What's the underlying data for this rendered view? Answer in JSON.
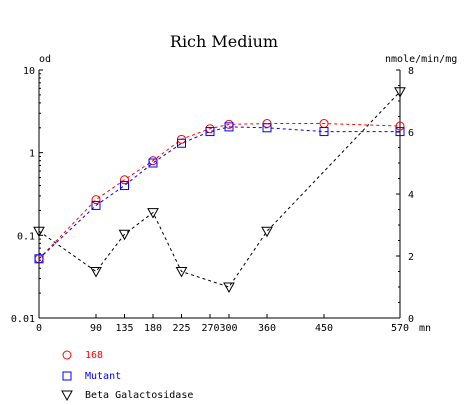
{
  "chart_data": {
    "type": "line",
    "title": "Rich Medium",
    "y_left_label": "od",
    "y_right_label": "nmole/min/mg",
    "x_unit_label": "mn",
    "x_ticks": [
      0,
      90,
      135,
      180,
      225,
      270,
      300,
      360,
      450,
      570
    ],
    "x_tick_labels": [
      "0",
      "90",
      "135",
      "180",
      "225",
      "270300",
      "360",
      "450",
      "570"
    ],
    "x_tick_label_positions": [
      0,
      90,
      135,
      180,
      225,
      285,
      360,
      450,
      570
    ],
    "xlim": [
      0,
      570
    ],
    "y_left_scale": "log",
    "y_left_lim": [
      0.01,
      10
    ],
    "y_left_ticks": [
      0.01,
      0.1,
      1,
      10
    ],
    "y_left_tick_labels": [
      "0.01",
      "0.1",
      "1",
      "10"
    ],
    "y_right_lim": [
      0,
      8
    ],
    "y_right_ticks": [
      0,
      2,
      4,
      6,
      8
    ],
    "y_right_tick_labels": [
      "0",
      "2",
      "4",
      "6",
      "8"
    ],
    "grid": false,
    "legend_position": "bottom-left",
    "series": [
      {
        "name": "168",
        "axis": "left",
        "color": "#ff0000",
        "marker": "circle",
        "x": [
          0,
          90,
          135,
          180,
          225,
          270,
          300,
          360,
          450,
          570
        ],
        "y": [
          0.052,
          0.27,
          0.47,
          0.8,
          1.45,
          1.95,
          2.2,
          2.25,
          2.25,
          2.1
        ]
      },
      {
        "name": "Mutant",
        "axis": "left",
        "color": "#0000ff",
        "marker": "square",
        "x": [
          0,
          90,
          135,
          180,
          225,
          270,
          300,
          360,
          450,
          570
        ],
        "y": [
          0.052,
          0.23,
          0.4,
          0.75,
          1.3,
          1.8,
          2.05,
          2.0,
          1.8,
          1.8
        ]
      },
      {
        "name": "Beta Galactosidase",
        "axis": "right",
        "color": "#000000",
        "marker": "triangle-down",
        "x": [
          0,
          90,
          135,
          180,
          225,
          300,
          360,
          570
        ],
        "y": [
          2.8,
          1.5,
          2.7,
          3.4,
          1.5,
          1.0,
          2.8,
          7.3
        ]
      }
    ]
  }
}
